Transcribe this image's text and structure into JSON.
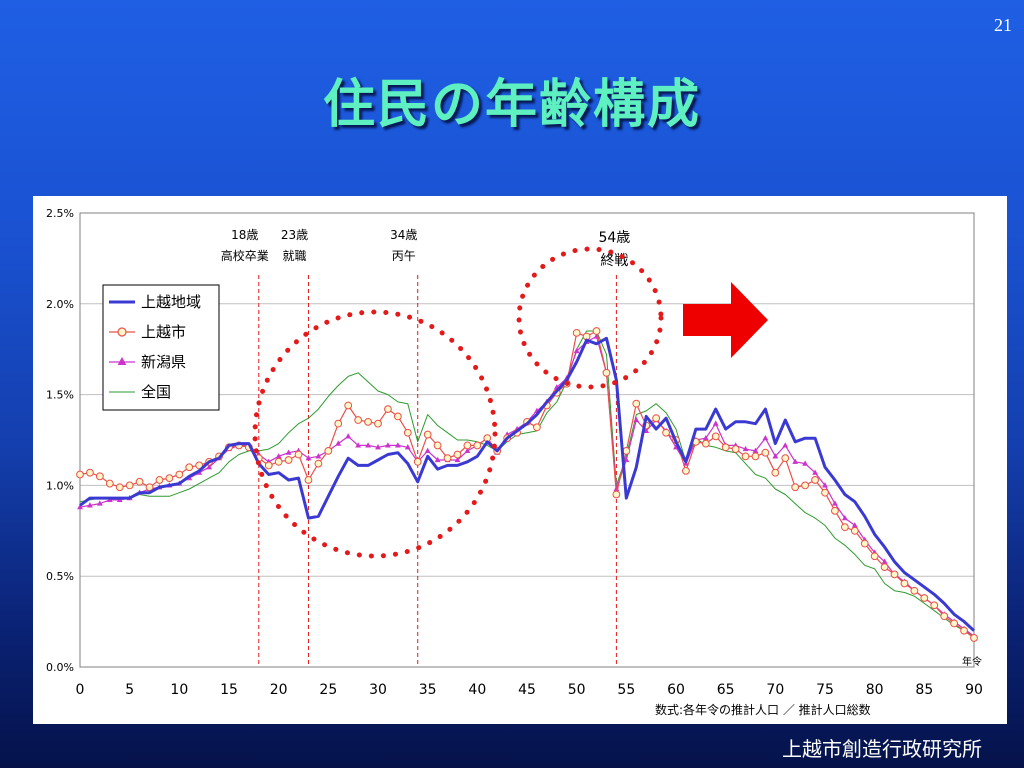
{
  "slide": {
    "page_number": "21",
    "title": "住民の年齢構成",
    "footer": "上越市創造行政研究所"
  },
  "colors": {
    "background_top": "#1f5fe4",
    "background_bottom": "#05124a",
    "title": "#5ef0c0",
    "series_joetsu_region": "#3a3ad2",
    "series_joetsu_city": "#e8504b",
    "series_niigata": "#cc33cc",
    "series_national": "#2e9b2e",
    "annotation": "#e41a1a",
    "arrow": "#ee0000"
  },
  "chart_data": {
    "type": "line",
    "x": [
      0,
      1,
      2,
      3,
      4,
      5,
      6,
      7,
      8,
      9,
      10,
      11,
      12,
      13,
      14,
      15,
      16,
      17,
      18,
      19,
      20,
      21,
      22,
      23,
      24,
      25,
      26,
      27,
      28,
      29,
      30,
      31,
      32,
      33,
      34,
      35,
      36,
      37,
      38,
      39,
      40,
      41,
      42,
      43,
      44,
      45,
      46,
      47,
      48,
      49,
      50,
      51,
      52,
      53,
      54,
      55,
      56,
      57,
      58,
      59,
      60,
      61,
      62,
      63,
      64,
      65,
      66,
      67,
      68,
      69,
      70,
      71,
      72,
      73,
      74,
      75,
      76,
      77,
      78,
      79,
      80,
      81,
      82,
      83,
      84,
      85,
      86,
      87,
      88,
      89,
      90
    ],
    "xticks": [
      0,
      5,
      10,
      15,
      20,
      25,
      30,
      35,
      40,
      45,
      50,
      55,
      60,
      65,
      70,
      75,
      80,
      85,
      90
    ],
    "xlabel": "年令",
    "ylim": [
      0,
      2.5
    ],
    "yticks": [
      "0.0%",
      "0.5%",
      "1.0%",
      "1.5%",
      "2.0%",
      "2.5%"
    ],
    "grid": "horizontal",
    "legend_position": "upper-left",
    "note": "数式:各年令の推計人口 ／ 推計人口総数",
    "series": [
      {
        "name": "上越地域",
        "marker": "none",
        "values": [
          0.89,
          0.93,
          0.93,
          0.93,
          0.93,
          0.93,
          0.96,
          0.96,
          0.99,
          1.0,
          1.01,
          1.05,
          1.08,
          1.13,
          1.15,
          1.22,
          1.23,
          1.23,
          1.12,
          1.06,
          1.07,
          1.03,
          1.04,
          0.82,
          0.83,
          0.94,
          1.05,
          1.15,
          1.11,
          1.11,
          1.14,
          1.17,
          1.18,
          1.12,
          1.02,
          1.16,
          1.09,
          1.11,
          1.11,
          1.13,
          1.16,
          1.24,
          1.19,
          1.26,
          1.3,
          1.34,
          1.39,
          1.46,
          1.52,
          1.58,
          1.68,
          1.8,
          1.78,
          1.81,
          1.58,
          0.93,
          1.1,
          1.38,
          1.31,
          1.37,
          1.24,
          1.13,
          1.31,
          1.31,
          1.42,
          1.31,
          1.35,
          1.35,
          1.34,
          1.42,
          1.23,
          1.36,
          1.24,
          1.26,
          1.26,
          1.1,
          1.03,
          0.95,
          0.91,
          0.83,
          0.73,
          0.66,
          0.58,
          0.52,
          0.48,
          0.44,
          0.4,
          0.35,
          0.29,
          0.25,
          0.2
        ]
      },
      {
        "name": "上越市",
        "marker": "circle",
        "values": [
          1.06,
          1.07,
          1.05,
          1.01,
          0.99,
          1.0,
          1.02,
          0.99,
          1.03,
          1.04,
          1.06,
          1.1,
          1.11,
          1.13,
          1.16,
          1.21,
          1.22,
          1.21,
          1.15,
          1.11,
          1.13,
          1.14,
          1.17,
          1.03,
          1.12,
          1.19,
          1.34,
          1.44,
          1.36,
          1.35,
          1.34,
          1.42,
          1.38,
          1.29,
          1.13,
          1.28,
          1.22,
          1.15,
          1.17,
          1.22,
          1.22,
          1.26,
          1.19,
          1.26,
          1.29,
          1.35,
          1.32,
          1.44,
          1.51,
          1.56,
          1.84,
          1.82,
          1.85,
          1.62,
          0.95,
          1.19,
          1.45,
          1.33,
          1.37,
          1.29,
          1.25,
          1.08,
          1.24,
          1.23,
          1.27,
          1.21,
          1.2,
          1.16,
          1.16,
          1.18,
          1.07,
          1.15,
          0.99,
          1.0,
          1.03,
          0.96,
          0.86,
          0.77,
          0.75,
          0.68,
          0.61,
          0.55,
          0.51,
          0.46,
          0.42,
          0.38,
          0.34,
          0.28,
          0.24,
          0.2,
          0.16
        ]
      },
      {
        "name": "新潟県",
        "marker": "triangle",
        "values": [
          0.88,
          0.89,
          0.9,
          0.92,
          0.92,
          0.93,
          0.96,
          0.98,
          0.99,
          1.0,
          1.01,
          1.04,
          1.07,
          1.1,
          1.15,
          1.2,
          1.22,
          1.22,
          1.17,
          1.13,
          1.16,
          1.18,
          1.19,
          1.15,
          1.16,
          1.19,
          1.23,
          1.27,
          1.22,
          1.22,
          1.21,
          1.22,
          1.22,
          1.21,
          1.13,
          1.19,
          1.14,
          1.14,
          1.14,
          1.19,
          1.22,
          1.26,
          1.18,
          1.28,
          1.31,
          1.35,
          1.41,
          1.46,
          1.54,
          1.59,
          1.74,
          1.79,
          1.82,
          1.62,
          0.98,
          1.14,
          1.36,
          1.3,
          1.36,
          1.3,
          1.21,
          1.12,
          1.25,
          1.26,
          1.34,
          1.22,
          1.22,
          1.2,
          1.19,
          1.26,
          1.16,
          1.22,
          1.13,
          1.12,
          1.07,
          1.0,
          0.9,
          0.82,
          0.78,
          0.7,
          0.63,
          0.58,
          0.51,
          0.47,
          0.42,
          0.38,
          0.34,
          0.29,
          0.25,
          0.21,
          0.17
        ]
      },
      {
        "name": "全国",
        "marker": "none",
        "values": [
          0.91,
          0.92,
          0.93,
          0.93,
          0.92,
          0.93,
          0.95,
          0.94,
          0.94,
          0.94,
          0.96,
          0.98,
          1.01,
          1.04,
          1.07,
          1.13,
          1.17,
          1.19,
          1.19,
          1.2,
          1.23,
          1.29,
          1.34,
          1.37,
          1.42,
          1.49,
          1.55,
          1.6,
          1.62,
          1.57,
          1.52,
          1.5,
          1.46,
          1.45,
          1.24,
          1.39,
          1.33,
          1.29,
          1.25,
          1.25,
          1.24,
          1.22,
          1.19,
          1.24,
          1.28,
          1.29,
          1.3,
          1.4,
          1.46,
          1.57,
          1.75,
          1.85,
          1.85,
          1.72,
          1.0,
          1.16,
          1.39,
          1.41,
          1.45,
          1.4,
          1.31,
          1.13,
          1.26,
          1.22,
          1.21,
          1.19,
          1.18,
          1.12,
          1.06,
          1.04,
          0.98,
          0.95,
          0.9,
          0.85,
          0.82,
          0.78,
          0.71,
          0.67,
          0.62,
          0.56,
          0.54,
          0.46,
          0.42,
          0.41,
          0.39,
          0.35,
          0.31,
          0.27,
          0.23,
          0.2,
          0.17
        ]
      }
    ],
    "annotations": [
      {
        "age": 18,
        "line1": "18歳",
        "line2": "高校卒業"
      },
      {
        "age": 23,
        "line1": "23歳",
        "line2": "就職"
      },
      {
        "age": 34,
        "line1": "34歳",
        "line2": "丙午"
      },
      {
        "age": 54,
        "line1": "54歳",
        "line2": "終戦"
      }
    ]
  }
}
